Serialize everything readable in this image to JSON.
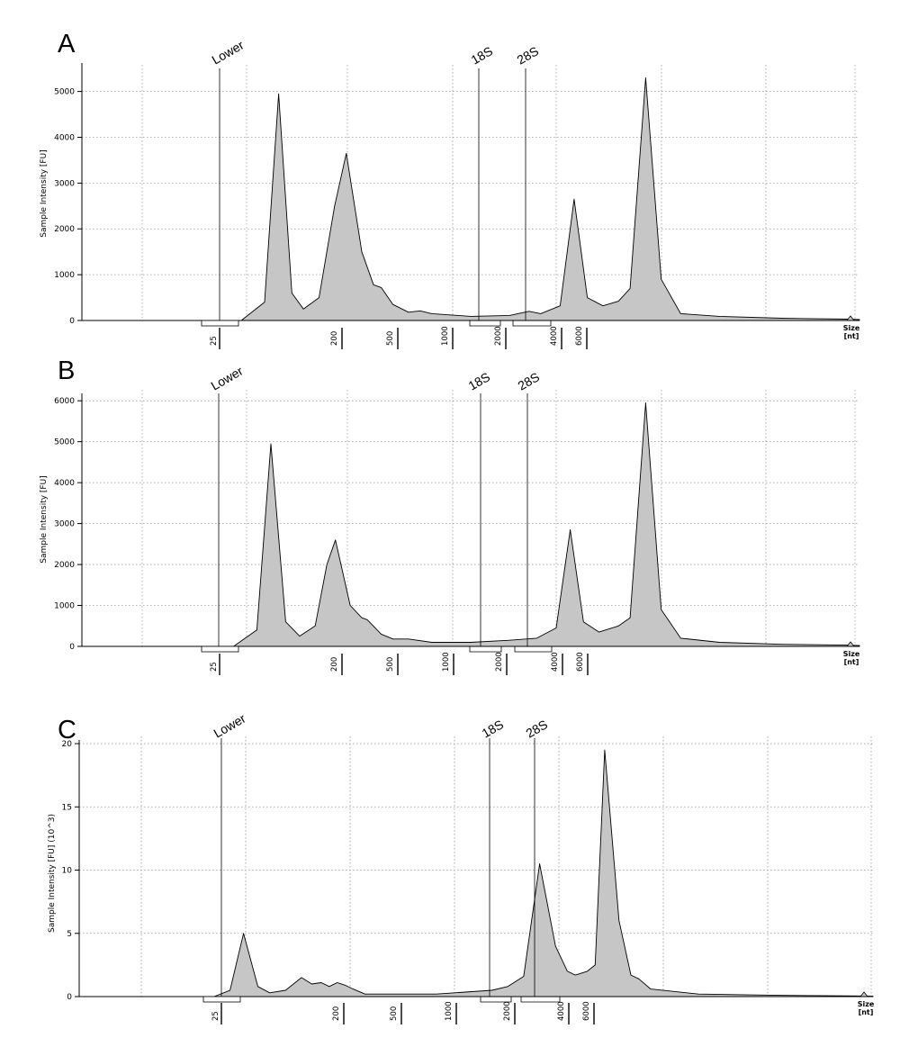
{
  "chart_data": [
    {
      "panel": "A",
      "type": "area",
      "ylabel": "Sample Intensity [FU]",
      "ylim": [
        0,
        5700
      ],
      "yticks": [
        0,
        1000,
        2000,
        3000,
        4000,
        5000
      ],
      "x_marker_labels": [
        "25",
        "200",
        "500",
        "1000",
        "2000",
        "4000",
        "6000"
      ],
      "x_size_label": [
        "Size",
        "[nt]"
      ],
      "grid": "dotted",
      "peaks": [
        {
          "label": "Lower",
          "size_nt": 25
        },
        {
          "label": "18S",
          "size_nt": 1900
        },
        {
          "label": "28S",
          "size_nt": 3600
        }
      ],
      "series": [
        {
          "values": [
            [
              0.01,
              0
            ],
            [
              0.205,
              0
            ],
            [
              0.235,
              400
            ],
            [
              0.253,
              4950
            ],
            [
              0.27,
              600
            ],
            [
              0.285,
              250
            ],
            [
              0.305,
              500
            ],
            [
              0.325,
              2500
            ],
            [
              0.34,
              3650
            ],
            [
              0.36,
              1500
            ],
            [
              0.375,
              780
            ],
            [
              0.385,
              720
            ],
            [
              0.4,
              350
            ],
            [
              0.42,
              180
            ],
            [
              0.435,
              210
            ],
            [
              0.45,
              150
            ],
            [
              0.5,
              90
            ],
            [
              0.55,
              110
            ],
            [
              0.575,
              200
            ],
            [
              0.59,
              150
            ],
            [
              0.615,
              320
            ],
            [
              0.633,
              2650
            ],
            [
              0.65,
              500
            ],
            [
              0.67,
              320
            ],
            [
              0.69,
              420
            ],
            [
              0.705,
              700
            ],
            [
              0.725,
              5300
            ],
            [
              0.745,
              900
            ],
            [
              0.77,
              150
            ],
            [
              0.82,
              90
            ],
            [
              0.9,
              50
            ],
            [
              0.985,
              30
            ],
            [
              1.0,
              20
            ]
          ]
        }
      ]
    },
    {
      "panel": "B",
      "type": "area",
      "ylabel": "Sample Intensity [FU]",
      "ylim": [
        0,
        6400
      ],
      "yticks": [
        0,
        1000,
        2000,
        3000,
        4000,
        5000,
        6000
      ],
      "x_marker_labels": [
        "25",
        "200",
        "500",
        "1000",
        "2000",
        "4000",
        "6000"
      ],
      "x_size_label": [
        "Size",
        "[nt]"
      ],
      "grid": "dotted",
      "peaks": [
        {
          "label": "Lower",
          "size_nt": 25
        },
        {
          "label": "18S",
          "size_nt": 1900
        },
        {
          "label": "28S",
          "size_nt": 3600
        }
      ],
      "series": [
        {
          "values": [
            [
              0.01,
              0
            ],
            [
              0.195,
              0
            ],
            [
              0.225,
              400
            ],
            [
              0.243,
              4950
            ],
            [
              0.262,
              600
            ],
            [
              0.28,
              250
            ],
            [
              0.3,
              500
            ],
            [
              0.315,
              2000
            ],
            [
              0.326,
              2600
            ],
            [
              0.345,
              1000
            ],
            [
              0.36,
              700
            ],
            [
              0.367,
              650
            ],
            [
              0.385,
              300
            ],
            [
              0.4,
              180
            ],
            [
              0.42,
              180
            ],
            [
              0.45,
              100
            ],
            [
              0.5,
              100
            ],
            [
              0.55,
              150
            ],
            [
              0.585,
              200
            ],
            [
              0.61,
              450
            ],
            [
              0.628,
              2850
            ],
            [
              0.645,
              600
            ],
            [
              0.665,
              350
            ],
            [
              0.69,
              500
            ],
            [
              0.705,
              700
            ],
            [
              0.725,
              5950
            ],
            [
              0.745,
              900
            ],
            [
              0.77,
              200
            ],
            [
              0.82,
              100
            ],
            [
              0.9,
              50
            ],
            [
              0.985,
              30
            ],
            [
              1.0,
              20
            ]
          ]
        }
      ]
    },
    {
      "panel": "C",
      "type": "area",
      "ylabel": "Sample Intensity [FU] (10^3)",
      "ylim": [
        0,
        21
      ],
      "yticks": [
        0,
        5,
        10,
        15,
        20
      ],
      "x_marker_labels": [
        "25",
        "200",
        "500",
        "1000",
        "2000",
        "4000",
        "6000"
      ],
      "x_size_label": [
        "Size",
        "[nt]"
      ],
      "grid": "dotted",
      "peaks": [
        {
          "label": "Lower",
          "size_nt": 25
        },
        {
          "label": "18S",
          "size_nt": 1900
        },
        {
          "label": "28S",
          "size_nt": 3600
        }
      ],
      "series": [
        {
          "values": [
            [
              0.01,
              0
            ],
            [
              0.17,
              0
            ],
            [
              0.19,
              0.5
            ],
            [
              0.207,
              5.0
            ],
            [
              0.225,
              0.8
            ],
            [
              0.24,
              0.3
            ],
            [
              0.26,
              0.5
            ],
            [
              0.28,
              1.5
            ],
            [
              0.293,
              1.0
            ],
            [
              0.305,
              1.1
            ],
            [
              0.315,
              0.8
            ],
            [
              0.325,
              1.1
            ],
            [
              0.335,
              0.9
            ],
            [
              0.345,
              0.6
            ],
            [
              0.36,
              0.2
            ],
            [
              0.45,
              0.2
            ],
            [
              0.52,
              0.5
            ],
            [
              0.54,
              0.8
            ],
            [
              0.56,
              1.6
            ],
            [
              0.58,
              10.5
            ],
            [
              0.6,
              4.0
            ],
            [
              0.615,
              2.0
            ],
            [
              0.625,
              1.7
            ],
            [
              0.64,
              2.0
            ],
            [
              0.65,
              2.5
            ],
            [
              0.662,
              19.5
            ],
            [
              0.68,
              6.0
            ],
            [
              0.695,
              1.7
            ],
            [
              0.705,
              1.4
            ],
            [
              0.72,
              0.6
            ],
            [
              0.78,
              0.2
            ],
            [
              0.88,
              0.1
            ],
            [
              0.985,
              0.05
            ],
            [
              1.0,
              0.03
            ]
          ]
        }
      ]
    }
  ]
}
